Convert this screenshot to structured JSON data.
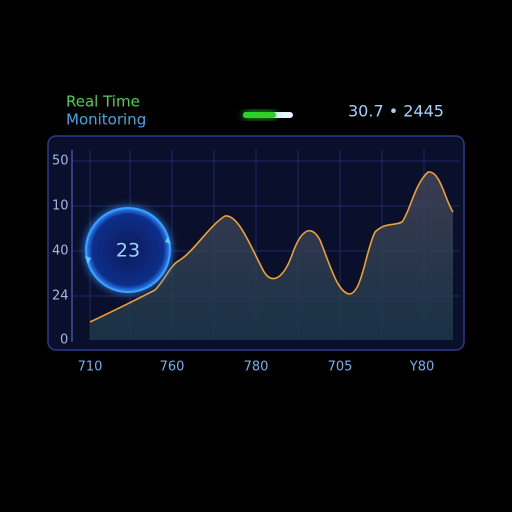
{
  "header": {
    "title_line1": "Real Time",
    "title_line2": "Monitoring",
    "readout": "30.7 • 2445"
  },
  "panel": {
    "y_labels": [
      "50",
      "10",
      "40",
      "24",
      "0"
    ],
    "x_labels": [
      "710",
      "760",
      "780",
      "705",
      "Y80"
    ],
    "badge": "23"
  }
}
